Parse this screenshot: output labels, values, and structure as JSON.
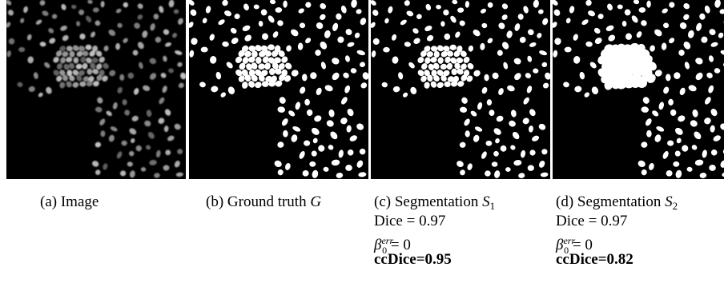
{
  "panels": [
    {
      "kind": "image",
      "caption": {
        "label": "(a) Image"
      }
    },
    {
      "kind": "mask",
      "caption": {
        "label": "(b) Ground truth ",
        "symbol": "G"
      }
    },
    {
      "kind": "mask",
      "caption": {
        "label": "(c) Segmentation ",
        "symbol": "S",
        "subscript": "1",
        "dice": "Dice = 0.97",
        "beta_symbol": "β",
        "beta_sup": "err",
        "beta_sub": "0",
        "beta_value": " = 0",
        "ccdice": "ccDice=0.95"
      }
    },
    {
      "kind": "mask",
      "caption": {
        "label": "(d) Segmentation ",
        "symbol": "S",
        "subscript": "2",
        "dice": "Dice = 0.97",
        "beta_symbol": "β",
        "beta_sup": "err",
        "beta_sub": "0",
        "beta_value": " = 0",
        "ccdice": "ccDice=0.82"
      }
    }
  ]
}
